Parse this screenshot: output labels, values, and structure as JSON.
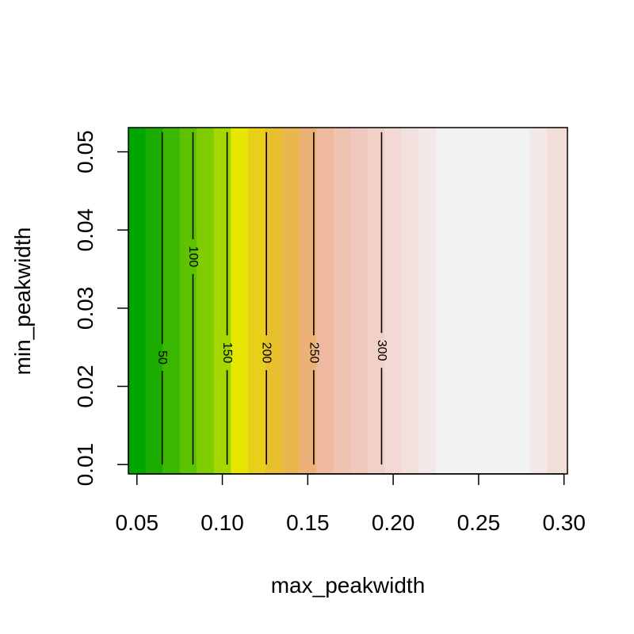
{
  "chart_data": {
    "type": "heatmap",
    "subtype": "filled-contour",
    "xlabel": "max_peakwidth",
    "ylabel": "min_peakwidth",
    "xlim": [
      0.045,
      0.302
    ],
    "ylim": [
      0.0088,
      0.0531
    ],
    "x_ticks": [
      0.05,
      0.1,
      0.15,
      0.2,
      0.25,
      0.3
    ],
    "x_tick_labels": [
      "0.05",
      "0.10",
      "0.15",
      "0.20",
      "0.25",
      "0.30"
    ],
    "y_ticks": [
      0.01,
      0.02,
      0.03,
      0.04,
      0.05
    ],
    "y_tick_labels": [
      "0.01",
      "0.02",
      "0.03",
      "0.04",
      "0.05"
    ],
    "bands": [
      {
        "x0": 0.045,
        "x1": 0.055,
        "color": "#00A600"
      },
      {
        "x0": 0.055,
        "x1": 0.065,
        "color": "#1AAD00"
      },
      {
        "x0": 0.065,
        "x1": 0.075,
        "color": "#3AB700"
      },
      {
        "x0": 0.075,
        "x1": 0.085,
        "color": "#5DC200"
      },
      {
        "x0": 0.085,
        "x1": 0.095,
        "color": "#7FCC00"
      },
      {
        "x0": 0.095,
        "x1": 0.105,
        "color": "#A4D700"
      },
      {
        "x0": 0.105,
        "x1": 0.115,
        "color": "#E6E600"
      },
      {
        "x0": 0.115,
        "x1": 0.125,
        "color": "#E7CF1A"
      },
      {
        "x0": 0.125,
        "x1": 0.135,
        "color": "#E8C02E"
      },
      {
        "x0": 0.135,
        "x1": 0.145,
        "color": "#EAB64E"
      },
      {
        "x0": 0.145,
        "x1": 0.155,
        "color": "#ECB176"
      },
      {
        "x0": 0.155,
        "x1": 0.165,
        "color": "#EEB99F"
      },
      {
        "x0": 0.165,
        "x1": 0.175,
        "color": "#F0C3B0"
      },
      {
        "x0": 0.175,
        "x1": 0.185,
        "color": "#F0C8BE"
      },
      {
        "x0": 0.185,
        "x1": 0.195,
        "color": "#F1D0C8"
      },
      {
        "x0": 0.195,
        "x1": 0.205,
        "color": "#F2D9D4"
      },
      {
        "x0": 0.205,
        "x1": 0.215,
        "color": "#F2E1DE"
      },
      {
        "x0": 0.215,
        "x1": 0.225,
        "color": "#F2E8E6"
      },
      {
        "x0": 0.225,
        "x1": 0.28,
        "color": "#F2F2F2"
      },
      {
        "x0": 0.28,
        "x1": 0.29,
        "color": "#F2E8E6"
      },
      {
        "x0": 0.29,
        "x1": 0.302,
        "color": "#F2DDD8"
      }
    ],
    "contours": [
      {
        "level": "50",
        "x": 0.0648,
        "label_y": 0.0237
      },
      {
        "level": "100",
        "x": 0.0828,
        "label_y": 0.0366
      },
      {
        "level": "150",
        "x": 0.1028,
        "label_y": 0.0243
      },
      {
        "level": "200",
        "x": 0.1258,
        "label_y": 0.0243
      },
      {
        "level": "250",
        "x": 0.1535,
        "label_y": 0.0243
      },
      {
        "level": "300",
        "x": 0.1932,
        "label_y": 0.0246
      }
    ],
    "contour_y_range": [
      0.01,
      0.0525
    ],
    "grid": false,
    "legend": "none"
  }
}
